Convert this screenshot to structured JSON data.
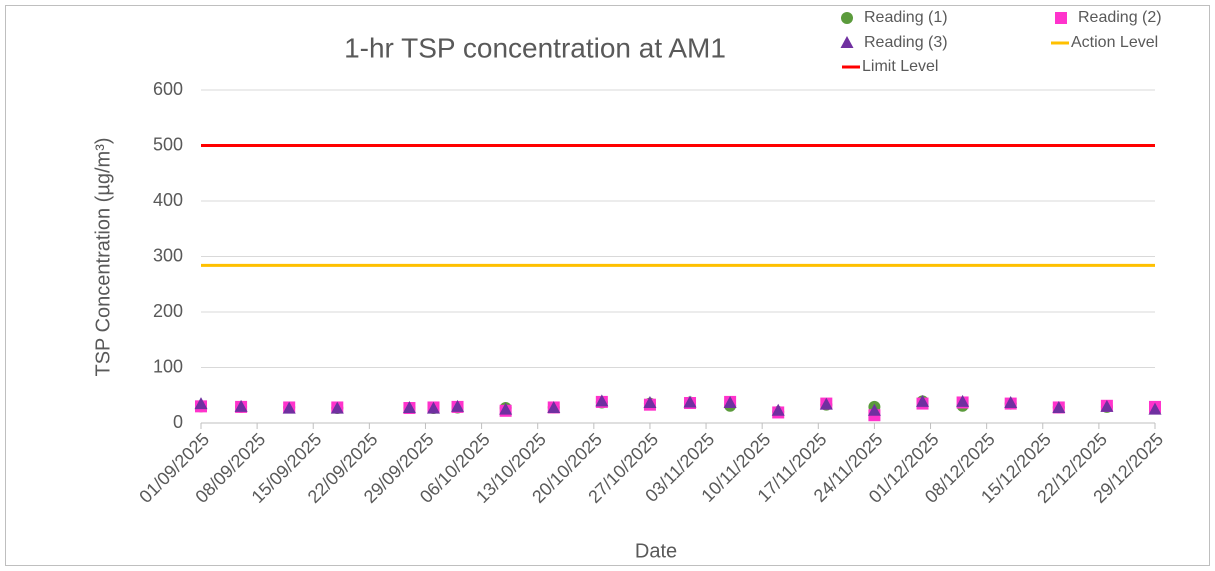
{
  "chart_data": {
    "type": "scatter",
    "title": "1-hr TSP concentration at AM1",
    "x_label": "Date",
    "y_label": "TSP Concentration (µg/m³)",
    "x": [
      "01/09/2025",
      "06/09/2025",
      "12/09/2025",
      "18/09/2025",
      "27/09/2025",
      "30/09/2025",
      "03/10/2025",
      "09/10/2025",
      "15/10/2025",
      "21/10/2025",
      "27/10/2025",
      "01/11/2025",
      "06/11/2025",
      "12/11/2025",
      "18/11/2025",
      "24/11/2025",
      "30/11/2025",
      "05/12/2025",
      "11/12/2025",
      "17/12/2025",
      "23/12/2025",
      "29/12/2025"
    ],
    "series": [
      {
        "name": "Reading (1)",
        "color": "#5b9b3c",
        "marker": "circle",
        "values": [
          30,
          29,
          28,
          27,
          27,
          27,
          28,
          27,
          28,
          37,
          35,
          37,
          31,
          20,
          33,
          29,
          39,
          31,
          35,
          28,
          29,
          27
        ]
      },
      {
        "name": "Reading (2)",
        "color": "#ff33cc",
        "marker": "square",
        "values": [
          30,
          29,
          28,
          28,
          27,
          28,
          29,
          22,
          28,
          38,
          33,
          36,
          38,
          19,
          35,
          14,
          35,
          37,
          35,
          28,
          31,
          29
        ]
      },
      {
        "name": "Reading (3)",
        "color": "#7030a0",
        "marker": "triangle",
        "values": [
          34,
          29,
          26,
          26,
          27,
          26,
          29,
          24,
          27,
          39,
          36,
          37,
          36,
          22,
          33,
          22,
          38,
          38,
          36,
          27,
          29,
          24
        ]
      },
      {
        "name": "Action Level",
        "color": "#ffc000",
        "marker": "line",
        "x": [
          "01/09/2025",
          "29/12/2025"
        ],
        "values": [
          284,
          284
        ]
      },
      {
        "name": "Limit Level",
        "color": "#ff0000",
        "marker": "line",
        "x": [
          "01/09/2025",
          "29/12/2025"
        ],
        "values": [
          500,
          500
        ]
      }
    ],
    "xlim": [
      "01/09/2025",
      "29/12/2025"
    ],
    "xticks": [
      "01/09/2025",
      "08/09/2025",
      "15/09/2025",
      "22/09/2025",
      "29/09/2025",
      "06/10/2025",
      "13/10/2025",
      "20/10/2025",
      "27/10/2025",
      "03/11/2025",
      "10/11/2025",
      "17/11/2025",
      "24/11/2025",
      "01/12/2025",
      "08/12/2025",
      "15/12/2025",
      "22/12/2025",
      "29/12/2025"
    ],
    "ylim": [
      0,
      600
    ],
    "yticks": [
      0,
      100,
      200,
      300,
      400,
      500,
      600
    ],
    "grid": true,
    "legend": "top-right"
  }
}
